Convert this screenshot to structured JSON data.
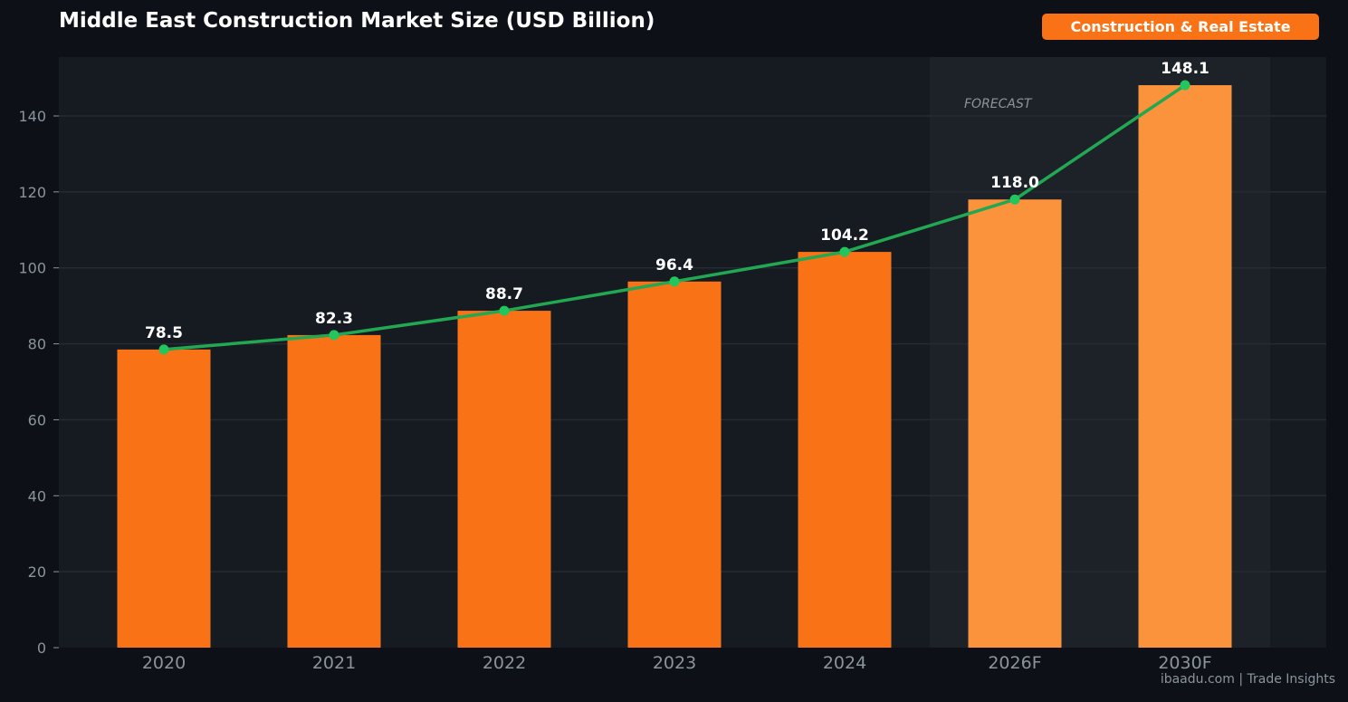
{
  "header": {
    "title": "Middle East Construction Market Size (USD Billion)",
    "badge": "Construction & Real Estate"
  },
  "footer": {
    "credit": "ibaadu.com | Trade Insights"
  },
  "chart_data": {
    "type": "bar",
    "title": "Middle East Construction Market Size (USD Billion)",
    "xlabel": "",
    "ylabel": "",
    "categories": [
      "2020",
      "2021",
      "2022",
      "2023",
      "2024",
      "2026F",
      "2030F"
    ],
    "values": [
      78.5,
      82.3,
      88.7,
      96.4,
      104.2,
      118.0,
      148.1
    ],
    "value_labels": [
      "78.5",
      "82.3",
      "88.7",
      "96.4",
      "104.2",
      "118.0",
      "148.1"
    ],
    "forecast_categories": [
      "2026F",
      "2030F"
    ],
    "forecast_label": "FORECAST",
    "overlay_line": {
      "type": "line",
      "values": [
        78.5,
        82.3,
        88.7,
        96.4,
        104.2,
        118.0,
        148.1
      ]
    },
    "ylim": [
      0,
      155.5
    ],
    "yticks": [
      0,
      20,
      40,
      60,
      80,
      100,
      120,
      140
    ],
    "grid": true,
    "colors": {
      "bar_actual": "#f97316",
      "bar_forecast": "#fb923c",
      "line": "#22a852",
      "marker": "#22c55e",
      "plot_background": "#161b22",
      "forecast_band": "#1d2128",
      "grid": "#262b33"
    }
  }
}
